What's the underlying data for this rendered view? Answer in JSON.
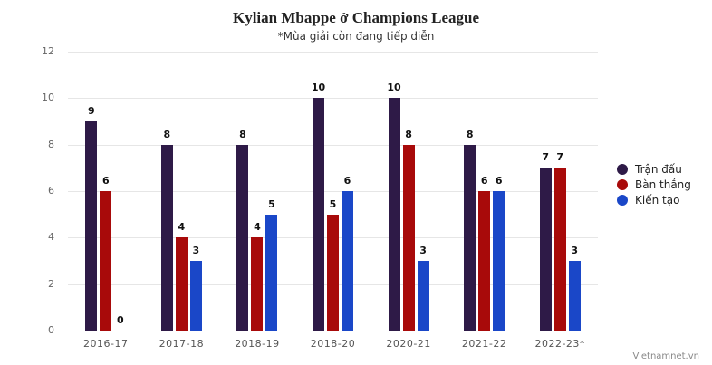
{
  "header": {
    "title": "Kylian Mbappe ở Champions League",
    "subtitle": "*Mùa giải còn đang tiếp diễn"
  },
  "credit": "Vietnamnet.vn",
  "colors": {
    "matches": "#2E1A47",
    "goals": "#A80A0A",
    "assists": "#1A47C8"
  },
  "yaxis": {
    "ticks": [
      "0",
      "2",
      "4",
      "6",
      "8",
      "10",
      "12"
    ]
  },
  "legend": [
    {
      "label": "Trận đấu",
      "color": "#2E1A47"
    },
    {
      "label": "Bàn thắng",
      "color": "#A80A0A"
    },
    {
      "label": "Kiến tạo",
      "color": "#1A47C8"
    }
  ],
  "chart_data": {
    "type": "bar",
    "title": "Kylian Mbappe ở Champions League",
    "subtitle": "*Mùa giải còn đang tiếp diễn",
    "categories": [
      "2016-17",
      "2017-18",
      "2018-19",
      "2018-20",
      "2020-21",
      "2021-22",
      "2022-23*"
    ],
    "series": [
      {
        "name": "Trận đấu",
        "color": "#2E1A47",
        "values": [
          9,
          8,
          8,
          10,
          10,
          8,
          7
        ]
      },
      {
        "name": "Bàn thắng",
        "color": "#A80A0A",
        "values": [
          6,
          4,
          4,
          5,
          8,
          6,
          7
        ]
      },
      {
        "name": "Kiến tạo",
        "color": "#1A47C8",
        "values": [
          0,
          3,
          5,
          6,
          3,
          6,
          3
        ]
      }
    ],
    "xlabel": "",
    "ylabel": "",
    "ylim": [
      0,
      12
    ],
    "yticks": [
      0,
      2,
      4,
      6,
      8,
      10,
      12
    ],
    "grid": true,
    "legend_position": "right",
    "data_labels": true,
    "source": "Vietnamnet.vn"
  }
}
